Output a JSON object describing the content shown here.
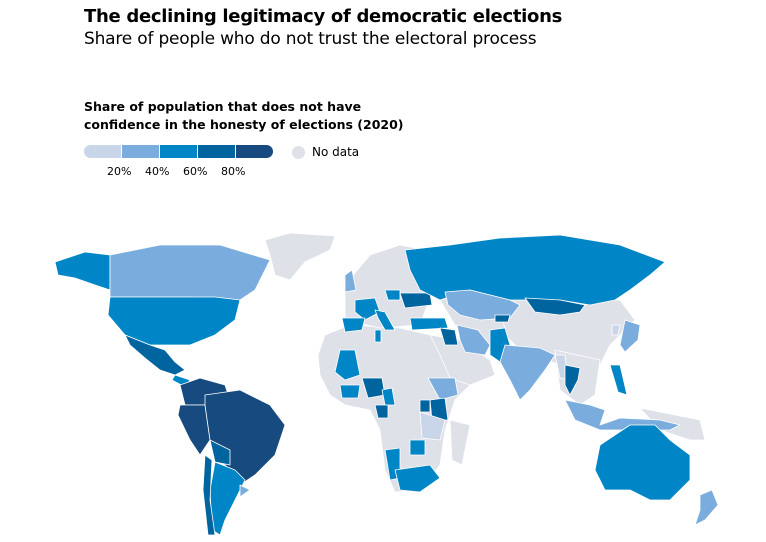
{
  "title": "The declining legitimacy of democratic elections",
  "subtitle": "Share of people who do not trust the electoral process",
  "legend": {
    "title_line1": "Share of population that does not have",
    "title_line2": "confidence in the honesty of elections (2020)",
    "bins_colors": [
      "#c9d5e8",
      "#7aaddd",
      "#0086c6",
      "#00649f",
      "#174a7e"
    ],
    "ticks": [
      "20%",
      "40%",
      "60%",
      "80%"
    ],
    "no_data_label": "No data",
    "no_data_color": "#dfe1e9"
  },
  "map_data": {
    "type": "choropleth",
    "year": 2020,
    "regions": [
      {
        "name": "Alaska (USA)",
        "bin": 2
      },
      {
        "name": "Canada",
        "bin": 1
      },
      {
        "name": "USA",
        "bin": 2
      },
      {
        "name": "Mexico",
        "bin": 3
      },
      {
        "name": "Central America",
        "bin": 2
      },
      {
        "name": "Colombia/Venezuela",
        "bin": 4
      },
      {
        "name": "Peru",
        "bin": 4
      },
      {
        "name": "Brazil",
        "bin": 4
      },
      {
        "name": "Bolivia",
        "bin": 3
      },
      {
        "name": "Argentina",
        "bin": 2
      },
      {
        "name": "Chile",
        "bin": 3
      },
      {
        "name": "Uruguay",
        "bin": 1
      },
      {
        "name": "UK",
        "bin": 1
      },
      {
        "name": "France",
        "bin": 2
      },
      {
        "name": "Spain",
        "bin": 2
      },
      {
        "name": "Italy",
        "bin": 2
      },
      {
        "name": "Poland",
        "bin": 2
      },
      {
        "name": "Ukraine",
        "bin": 3
      },
      {
        "name": "Turkey",
        "bin": 2
      },
      {
        "name": "Russia",
        "bin": 2
      },
      {
        "name": "Kazakhstan",
        "bin": 1
      },
      {
        "name": "Mongolia",
        "bin": 3
      },
      {
        "name": "Kyrgyzstan",
        "bin": 3
      },
      {
        "name": "Iraq",
        "bin": 3
      },
      {
        "name": "Iran",
        "bin": 1
      },
      {
        "name": "Pakistan",
        "bin": 2
      },
      {
        "name": "India",
        "bin": 1
      },
      {
        "name": "Myanmar",
        "bin": 0
      },
      {
        "name": "Thailand",
        "bin": 3
      },
      {
        "name": "Japan",
        "bin": 1
      },
      {
        "name": "South Korea",
        "bin": 0
      },
      {
        "name": "Philippines",
        "bin": 2
      },
      {
        "name": "Indonesia",
        "bin": 1
      },
      {
        "name": "Australia",
        "bin": 2
      },
      {
        "name": "New Zealand",
        "bin": 1
      },
      {
        "name": "Tunisia",
        "bin": 2
      },
      {
        "name": "Mali",
        "bin": 2
      },
      {
        "name": "Ivory Coast/Ghana",
        "bin": 2
      },
      {
        "name": "Nigeria",
        "bin": 3
      },
      {
        "name": "Cameroon",
        "bin": 2
      },
      {
        "name": "Gabon",
        "bin": 3
      },
      {
        "name": "Ethiopia",
        "bin": 1
      },
      {
        "name": "Uganda",
        "bin": 3
      },
      {
        "name": "Kenya",
        "bin": 3
      },
      {
        "name": "Tanzania",
        "bin": 0
      },
      {
        "name": "Zambia",
        "bin": 2
      },
      {
        "name": "Namibia",
        "bin": 2
      },
      {
        "name": "South Africa",
        "bin": 2
      }
    ]
  }
}
